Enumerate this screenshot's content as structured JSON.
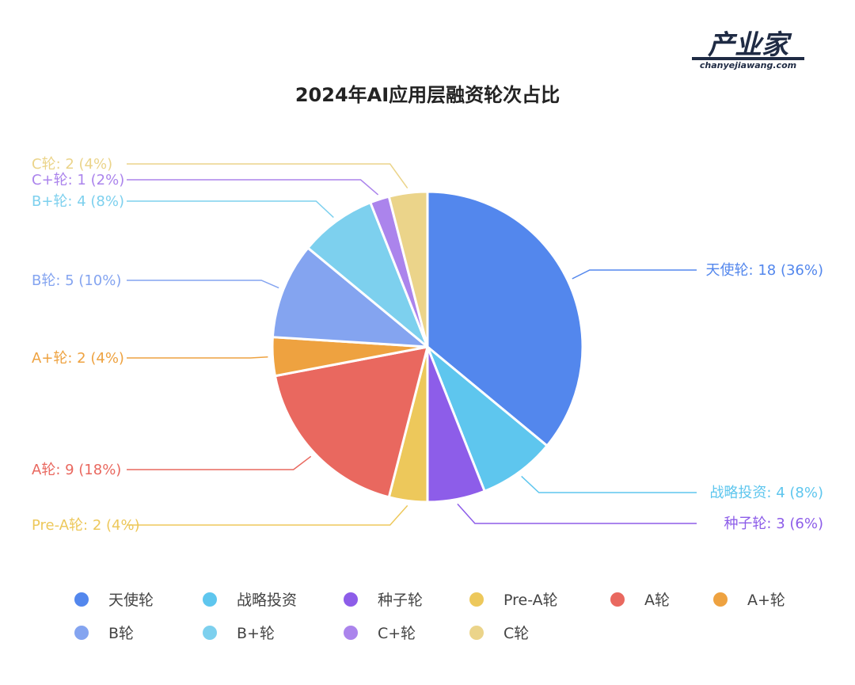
{
  "logo": {
    "main": "产业家",
    "sub": "chanyejiawang.com",
    "color": "#1f2b44"
  },
  "chart_data": {
    "type": "pie",
    "title": "2024年AI应用层融资轮次占比",
    "legend_placement": "bottom",
    "slices": [
      {
        "name": "天使轮",
        "value": 18,
        "percent": "36%",
        "color": "#5387ed"
      },
      {
        "name": "战略投资",
        "value": 4,
        "percent": "8%",
        "color": "#5ec6ee"
      },
      {
        "name": "种子轮",
        "value": 3,
        "percent": "6%",
        "color": "#8d5de9"
      },
      {
        "name": "Pre-A轮",
        "value": 2,
        "percent": "4%",
        "color": "#edc85b"
      },
      {
        "name": "A轮",
        "value": 9,
        "percent": "18%",
        "color": "#e9685f"
      },
      {
        "name": "A+轮",
        "value": 2,
        "percent": "4%",
        "color": "#eea240"
      },
      {
        "name": "B轮",
        "value": 5,
        "percent": "10%",
        "color": "#84a4f0"
      },
      {
        "name": "B+轮",
        "value": 4,
        "percent": "8%",
        "color": "#7dd0ee"
      },
      {
        "name": "C+轮",
        "value": 1,
        "percent": "2%",
        "color": "#ab84ec"
      },
      {
        "name": "C轮",
        "value": 2,
        "percent": "4%",
        "color": "#ebd48a"
      }
    ]
  }
}
